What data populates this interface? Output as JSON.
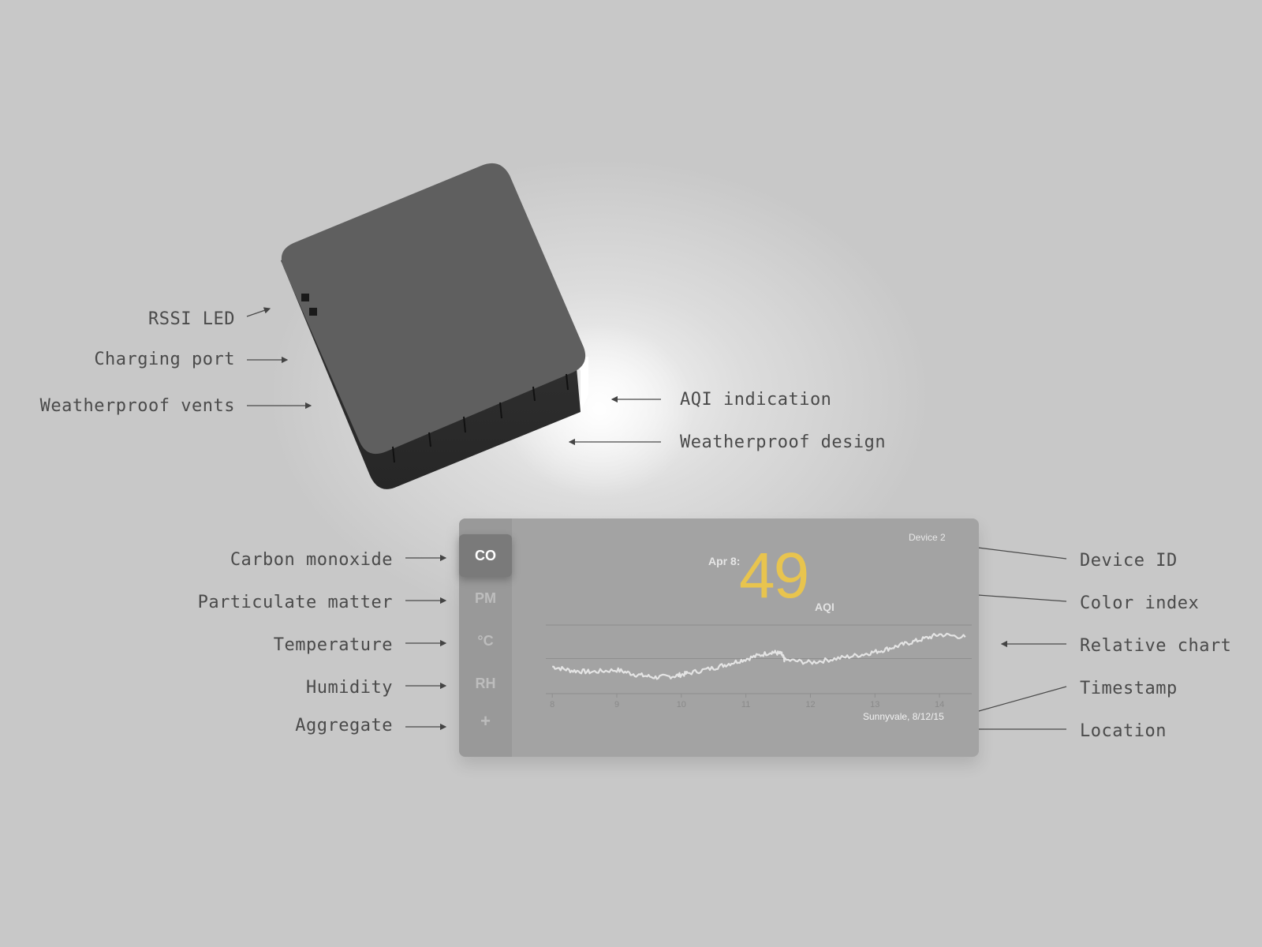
{
  "callouts": {
    "rssi_led": "RSSI LED",
    "charging_port": "Charging port",
    "vents": "Weatherproof vents",
    "aqi_indication": "AQI indication",
    "weatherproof_design": "Weatherproof design",
    "carbon_monoxide": "Carbon monoxide",
    "particulate_matter": "Particulate matter",
    "temperature": "Temperature",
    "humidity": "Humidity",
    "aggregate": "Aggregate",
    "device_id": "Device ID",
    "color_index": "Color index",
    "relative_chart": "Relative chart",
    "timestamp": "Timestamp",
    "location": "Location"
  },
  "dashboard": {
    "sidebar": [
      "CO",
      "PM",
      "°C",
      "RH",
      "+"
    ],
    "active_index": 0,
    "device_id": "Device 2",
    "date": "Apr 8:",
    "aqi_value": "49",
    "aqi_unit": "AQI",
    "location": "Sunnyvale, 8/12/15",
    "aqi_color": "#e8c44e"
  },
  "chart_data": {
    "type": "line",
    "x_ticks": [
      "8",
      "9",
      "10",
      "11",
      "12",
      "13",
      "14"
    ],
    "series": [
      {
        "values": [
          0.38,
          0.32,
          0.3,
          0.33,
          0.26,
          0.22,
          0.24,
          0.28,
          0.36,
          0.44,
          0.52,
          0.6,
          0.57,
          0.48,
          0.44,
          0.5,
          0.56,
          0.62,
          0.7,
          0.78,
          0.86,
          0.82
        ]
      }
    ],
    "x": [
      8.0,
      8.3,
      8.6,
      9.0,
      9.3,
      9.6,
      9.9,
      10.1,
      10.5,
      10.8,
      11.1,
      11.4,
      11.55,
      11.6,
      12.0,
      12.4,
      12.8,
      13.1,
      13.4,
      13.7,
      14.0,
      14.4
    ],
    "xlim": [
      7.9,
      14.5
    ],
    "ylim": [
      0,
      1
    ],
    "grid": true,
    "legend": "none"
  }
}
